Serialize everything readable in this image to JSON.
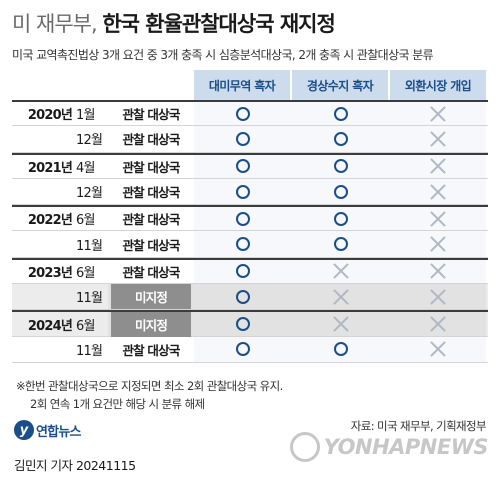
{
  "title": {
    "prefix": "미 재무부,",
    "main": "한국 환율관찰대상국 재지정"
  },
  "subtitle": "미국 교역촉진법상 3개 요건 중 3개 충족 시 심층분석대상국, 2개 충족 시 관찰대상국 분류",
  "headers": [
    "대미무역 흑자",
    "경상수지 흑자",
    "외환시장 개입"
  ],
  "rows": [
    {
      "year": "2020년",
      "month": "1월",
      "status": "관찰 대상국",
      "off": false,
      "shade": false,
      "first": true,
      "marks": [
        "o",
        "o",
        "x"
      ]
    },
    {
      "year": "",
      "month": "12월",
      "status": "관찰 대상국",
      "off": false,
      "shade": false,
      "first": false,
      "marks": [
        "o",
        "o",
        "x"
      ]
    },
    {
      "year": "2021년",
      "month": "4월",
      "status": "관찰 대상국",
      "off": false,
      "shade": false,
      "first": true,
      "marks": [
        "o",
        "o",
        "x"
      ]
    },
    {
      "year": "",
      "month": "12월",
      "status": "관찰 대상국",
      "off": false,
      "shade": false,
      "first": false,
      "marks": [
        "o",
        "o",
        "x"
      ]
    },
    {
      "year": "2022년",
      "month": "6월",
      "status": "관찰 대상국",
      "off": false,
      "shade": false,
      "first": true,
      "marks": [
        "o",
        "o",
        "x"
      ]
    },
    {
      "year": "",
      "month": "11월",
      "status": "관찰 대상국",
      "off": false,
      "shade": false,
      "first": false,
      "marks": [
        "o",
        "o",
        "x"
      ]
    },
    {
      "year": "2023년",
      "month": "6월",
      "status": "관찰 대상국",
      "off": false,
      "shade": false,
      "first": true,
      "marks": [
        "o",
        "x",
        "x"
      ]
    },
    {
      "year": "",
      "month": "11월",
      "status": "미지정",
      "off": true,
      "shade": true,
      "first": false,
      "marks": [
        "o",
        "x",
        "x"
      ]
    },
    {
      "year": "2024년",
      "month": "6월",
      "status": "미지정",
      "off": true,
      "shade": true,
      "first": true,
      "marks": [
        "o",
        "x",
        "x"
      ]
    },
    {
      "year": "",
      "month": "11월",
      "status": "관찰 대상국",
      "off": false,
      "shade": false,
      "first": false,
      "marks": [
        "o",
        "o",
        "x"
      ]
    }
  ],
  "notes": [
    "※한번 관찰대상국으로 지정되면 최소 2회 관찰대상국 유지.",
    "2회 연속 1개 요건만 해당 시 분류 해제"
  ],
  "source": "자료: 미국 재무부, 기획재정부",
  "logo_text": "연합뉴스",
  "byline": "김민지 기자  20241115",
  "watermark": "YONHAPNEWS",
  "colors": {
    "accent": "#1a4e8a",
    "header_bg": "#ccdced",
    "off_badge": "#8e8e8e",
    "cross": "#b0b8c4"
  }
}
